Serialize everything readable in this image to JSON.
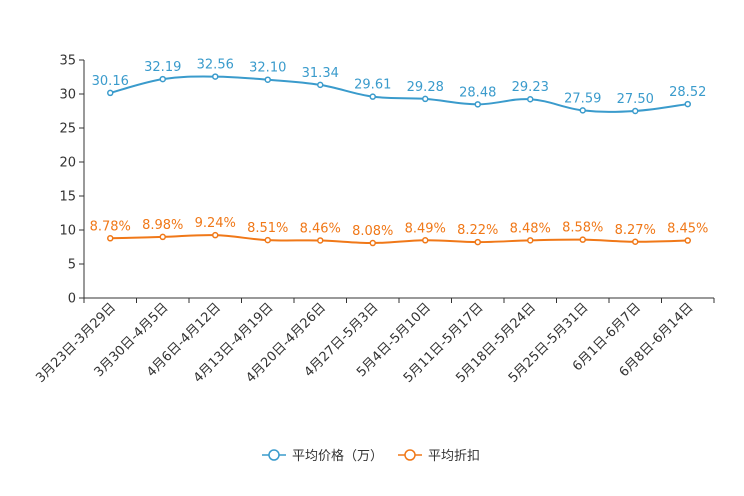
{
  "chart_data": {
    "type": "line",
    "title": "",
    "xlabel": "",
    "ylabel": "",
    "ylim": [
      0,
      35
    ],
    "yticks": [
      0,
      5,
      10,
      15,
      20,
      25,
      30,
      35
    ],
    "grid": false,
    "legend_position": "bottom-center",
    "categories": [
      "3月23日-3月29日",
      "3月30日-4月5日",
      "4月6日-4月12日",
      "4月13日-4月19日",
      "4月20日-4月26日",
      "4月27日-5月3日",
      "5月4日-5月10日",
      "5月11日-5月17日",
      "5月18日-5月24日",
      "5月25日-5月31日",
      "6月1日-6月7日",
      "6月8日-6月14日"
    ],
    "series": [
      {
        "name": "平均价格（万）",
        "color": "#3a9bcc",
        "values": [
          30.16,
          32.19,
          32.56,
          32.1,
          31.34,
          29.61,
          29.28,
          28.48,
          29.23,
          27.59,
          27.5,
          28.52
        ],
        "labels": [
          "30.16",
          "32.19",
          "32.56",
          "32.10",
          "31.34",
          "29.61",
          "29.28",
          "28.48",
          "29.23",
          "27.59",
          "27.50",
          "28.52"
        ]
      },
      {
        "name": "平均折扣",
        "color": "#f07818",
        "values": [
          8.78,
          8.98,
          9.24,
          8.51,
          8.46,
          8.08,
          8.49,
          8.22,
          8.48,
          8.58,
          8.27,
          8.45
        ],
        "labels": [
          "8.78%",
          "8.98%",
          "9.24%",
          "8.51%",
          "8.46%",
          "8.08%",
          "8.49%",
          "8.22%",
          "8.48%",
          "8.58%",
          "8.27%",
          "8.45%"
        ]
      }
    ]
  }
}
